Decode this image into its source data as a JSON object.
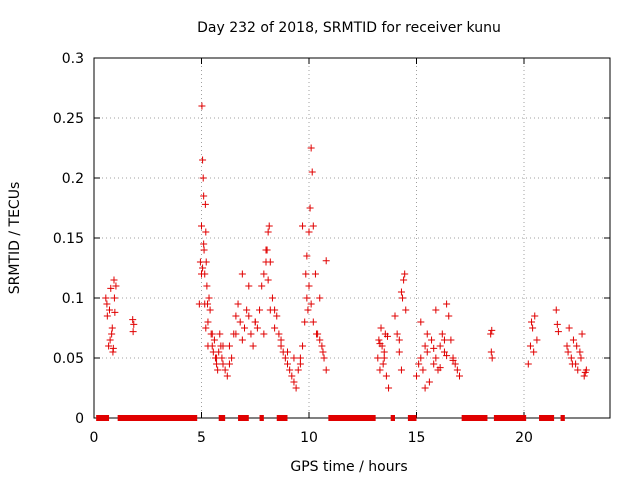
{
  "chart_data": {
    "type": "scatter",
    "title": "Day 232 of 2018, SRMTID for receiver kunu",
    "xlabel": "GPS time / hours",
    "ylabel": "SRMTID / TECUs",
    "xlim": [
      0,
      24
    ],
    "ylim": [
      0,
      0.3
    ],
    "grid": true,
    "x_ticks": [
      0,
      5,
      10,
      15,
      20
    ],
    "x_tick_labels": [
      "0",
      "5",
      "10",
      "15",
      "20"
    ],
    "y_ticks": [
      0,
      0.05,
      0.1,
      0.15,
      0.2,
      0.25,
      0.3
    ],
    "y_tick_labels": [
      "0",
      "0.05",
      "0.1",
      "0.15",
      "0.2",
      "0.25",
      "0.3"
    ],
    "marker": "+",
    "color": "#e00000",
    "series": [
      {
        "name": "SRMTID",
        "x": [
          0.55,
          0.62,
          0.68,
          0.72,
          0.78,
          0.82,
          0.88,
          0.93,
          0.97,
          1.02,
          0.6,
          0.75,
          0.85,
          0.9,
          0.95,
          1.8,
          1.85,
          1.82,
          4.9,
          4.95,
          5.0,
          5.02,
          5.05,
          5.08,
          5.1,
          5.12,
          5.15,
          5.18,
          5.2,
          5.22,
          5.25,
          5.28,
          5.3,
          5.35,
          5.4,
          5.45,
          5.5,
          5.55,
          5.6,
          5.65,
          5.7,
          5.75,
          5.8,
          5.85,
          5.9,
          5.95,
          6.0,
          6.1,
          6.2,
          6.3,
          6.4,
          6.5,
          6.6,
          6.7,
          6.8,
          6.9,
          7.0,
          7.1,
          7.2,
          7.3,
          7.4,
          7.5,
          7.6,
          7.7,
          7.8,
          7.9,
          8.0,
          8.05,
          8.1,
          8.15,
          8.2,
          8.3,
          8.4,
          8.5,
          8.6,
          8.7,
          8.8,
          8.9,
          9.0,
          9.1,
          9.2,
          9.3,
          9.4,
          9.5,
          9.6,
          9.7,
          9.8,
          9.85,
          9.9,
          9.95,
          10.0,
          10.05,
          10.1,
          10.15,
          10.2,
          10.3,
          10.4,
          10.5,
          10.6,
          10.7,
          10.8,
          5.0,
          5.05,
          5.1,
          5.15,
          5.2,
          5.3,
          5.5,
          5.7,
          6.0,
          6.3,
          6.6,
          6.9,
          7.2,
          7.5,
          7.9,
          8.0,
          8.1,
          8.2,
          8.4,
          8.7,
          9.0,
          9.3,
          9.6,
          9.7,
          9.9,
          10.0,
          10.1,
          10.2,
          10.35,
          10.5,
          10.65,
          10.8,
          13.2,
          13.25,
          13.3,
          13.35,
          13.4,
          13.45,
          13.5,
          13.55,
          13.6,
          13.65,
          13.7,
          14.0,
          14.1,
          14.2,
          14.3,
          14.35,
          14.4,
          14.45,
          14.5,
          13.3,
          13.5,
          14.2,
          14.3,
          15.0,
          15.1,
          15.2,
          15.3,
          15.4,
          15.5,
          15.6,
          15.7,
          15.8,
          15.9,
          16.0,
          16.1,
          16.2,
          16.3,
          16.4,
          16.5,
          16.6,
          16.7,
          16.8,
          16.9,
          17.0,
          15.2,
          15.5,
          15.8,
          16.1,
          16.4,
          16.7,
          15.4,
          15.9,
          16.3,
          18.45,
          18.5,
          18.48,
          18.52,
          20.2,
          20.3,
          20.4,
          20.5,
          20.6,
          20.35,
          20.45,
          21.5,
          21.55,
          21.6,
          22.0,
          22.1,
          22.2,
          22.3,
          22.4,
          22.5,
          22.6,
          22.7,
          22.8,
          22.9,
          22.05,
          22.25,
          22.45,
          22.65,
          22.85
        ],
        "y": [
          0.1,
          0.085,
          0.06,
          0.09,
          0.108,
          0.07,
          0.055,
          0.115,
          0.088,
          0.11,
          0.095,
          0.065,
          0.075,
          0.058,
          0.1,
          0.082,
          0.078,
          0.072,
          0.095,
          0.13,
          0.16,
          0.26,
          0.215,
          0.2,
          0.185,
          0.14,
          0.12,
          0.178,
          0.155,
          0.13,
          0.11,
          0.095,
          0.08,
          0.1,
          0.09,
          0.07,
          0.06,
          0.055,
          0.065,
          0.05,
          0.045,
          0.04,
          0.055,
          0.07,
          0.06,
          0.05,
          0.045,
          0.04,
          0.035,
          0.06,
          0.05,
          0.07,
          0.085,
          0.095,
          0.08,
          0.065,
          0.075,
          0.09,
          0.085,
          0.07,
          0.06,
          0.08,
          0.075,
          0.09,
          0.11,
          0.12,
          0.13,
          0.14,
          0.155,
          0.16,
          0.13,
          0.1,
          0.09,
          0.085,
          0.07,
          0.06,
          0.055,
          0.05,
          0.045,
          0.04,
          0.035,
          0.03,
          0.025,
          0.04,
          0.05,
          0.06,
          0.08,
          0.12,
          0.1,
          0.09,
          0.155,
          0.175,
          0.225,
          0.205,
          0.16,
          0.12,
          0.07,
          0.1,
          0.06,
          0.05,
          0.04,
          0.12,
          0.125,
          0.145,
          0.095,
          0.075,
          0.06,
          0.07,
          0.05,
          0.06,
          0.045,
          0.07,
          0.12,
          0.11,
          0.08,
          0.07,
          0.14,
          0.115,
          0.09,
          0.075,
          0.065,
          0.055,
          0.05,
          0.045,
          0.16,
          0.135,
          0.11,
          0.095,
          0.08,
          0.07,
          0.065,
          0.055,
          0.131,
          0.05,
          0.065,
          0.04,
          0.075,
          0.06,
          0.045,
          0.055,
          0.07,
          0.035,
          0.068,
          0.025,
          0.085,
          0.07,
          0.055,
          0.04,
          0.1,
          0.115,
          0.12,
          0.09,
          0.062,
          0.05,
          0.065,
          0.105,
          0.035,
          0.045,
          0.05,
          0.04,
          0.06,
          0.055,
          0.03,
          0.065,
          0.045,
          0.05,
          0.04,
          0.06,
          0.07,
          0.055,
          0.095,
          0.085,
          0.065,
          0.05,
          0.045,
          0.04,
          0.035,
          0.08,
          0.07,
          0.058,
          0.042,
          0.052,
          0.048,
          0.025,
          0.09,
          0.065,
          0.07,
          0.073,
          0.055,
          0.05,
          0.045,
          0.06,
          0.075,
          0.085,
          0.065,
          0.08,
          0.055,
          0.09,
          0.078,
          0.072,
          0.06,
          0.075,
          0.05,
          0.065,
          0.045,
          0.04,
          0.055,
          0.07,
          0.035,
          0.04,
          0.055,
          0.045,
          0.06,
          0.05,
          0.038
        ]
      }
    ],
    "zero_segments": [
      [
        0.1,
        0.7
      ],
      [
        1.1,
        4.8
      ],
      [
        5.8,
        6.1
      ],
      [
        6.7,
        7.2
      ],
      [
        7.7,
        7.9
      ],
      [
        8.5,
        9.0
      ],
      [
        10.9,
        13.1
      ],
      [
        13.8,
        14.0
      ],
      [
        14.6,
        15.0
      ],
      [
        17.1,
        18.3
      ],
      [
        18.6,
        20.1
      ],
      [
        20.7,
        21.4
      ],
      [
        21.7,
        21.9
      ]
    ]
  }
}
